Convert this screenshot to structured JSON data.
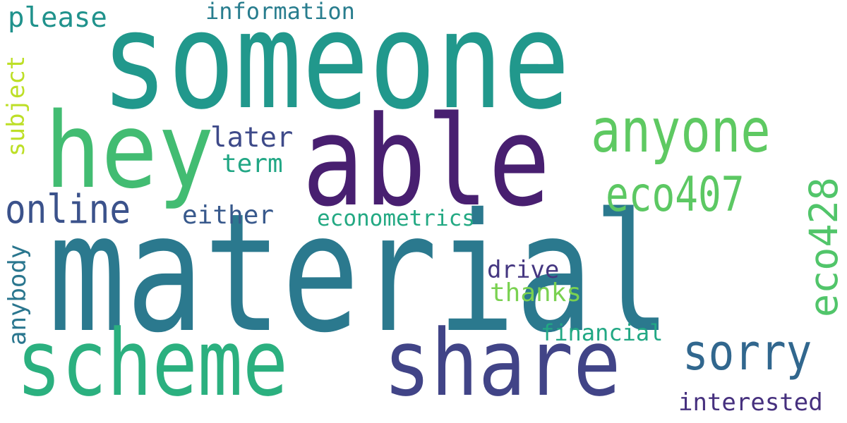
{
  "words": [
    {
      "id": "someone",
      "text": "someone",
      "color": "#21988c",
      "rotated": false
    },
    {
      "id": "material",
      "text": "material",
      "color": "#2b798e",
      "rotated": false
    },
    {
      "id": "able",
      "text": "able",
      "color": "#481f70",
      "rotated": false
    },
    {
      "id": "hey",
      "text": "hey",
      "color": "#42bc72",
      "rotated": false
    },
    {
      "id": "scheme",
      "text": "scheme",
      "color": "#2bb07f",
      "rotated": false
    },
    {
      "id": "share",
      "text": "share",
      "color": "#414487",
      "rotated": false
    },
    {
      "id": "anyone",
      "text": "anyone",
      "color": "#5ec962",
      "rotated": false
    },
    {
      "id": "sorry",
      "text": "sorry",
      "color": "#31678e",
      "rotated": false
    },
    {
      "id": "online",
      "text": "online",
      "color": "#3b528b",
      "rotated": false
    },
    {
      "id": "eco407",
      "text": "eco407",
      "color": "#5cc863",
      "rotated": false
    },
    {
      "id": "eco428",
      "text": "eco428",
      "color": "#51c56a",
      "rotated": true
    },
    {
      "id": "please",
      "text": "please",
      "color": "#20928c",
      "rotated": false
    },
    {
      "id": "information",
      "text": "information",
      "color": "#287d8e",
      "rotated": false
    },
    {
      "id": "subject",
      "text": "subject",
      "color": "#bddf26",
      "rotated": true
    },
    {
      "id": "later",
      "text": "later",
      "color": "#3e4a89",
      "rotated": false
    },
    {
      "id": "term",
      "text": "term",
      "color": "#22a785",
      "rotated": false
    },
    {
      "id": "either",
      "text": "either",
      "color": "#38598c",
      "rotated": false
    },
    {
      "id": "econometrics",
      "text": "econometrics",
      "color": "#23a983",
      "rotated": false
    },
    {
      "id": "anybody",
      "text": "anybody",
      "color": "#2a768e",
      "rotated": true
    },
    {
      "id": "drive",
      "text": "drive",
      "color": "#453781",
      "rotated": false
    },
    {
      "id": "thanks",
      "text": "thanks",
      "color": "#7ad151",
      "rotated": false
    },
    {
      "id": "financial",
      "text": "financial",
      "color": "#22a884",
      "rotated": false
    },
    {
      "id": "interested",
      "text": "interested",
      "color": "#46307e",
      "rotated": false
    }
  ]
}
